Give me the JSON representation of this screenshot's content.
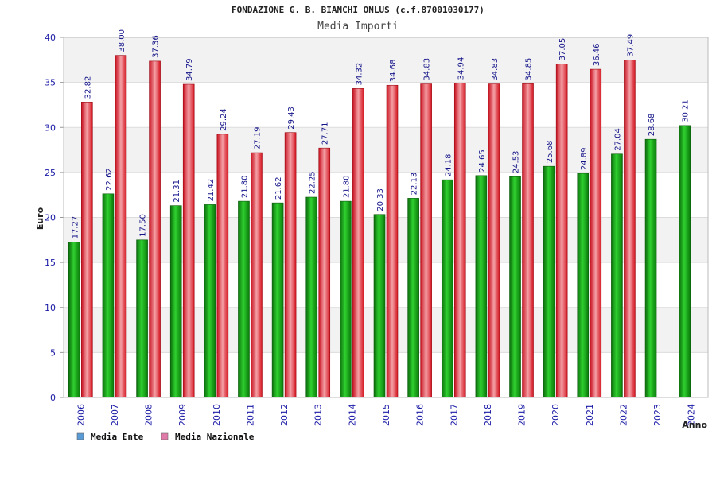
{
  "chart_data": {
    "type": "bar",
    "title": "FONDAZIONE G. B. BIANCHI ONLUS (c.f.87001030177)",
    "subtitle": "Media Importi",
    "ylabel": "Euro",
    "xlabel": "Anno",
    "ylim": [
      0,
      40
    ],
    "yticks": [
      "0",
      "5",
      "10",
      "15",
      "20",
      "25",
      "30",
      "35",
      "40"
    ],
    "grid": true,
    "legend_position": "bottom-left",
    "categories": [
      "2006",
      "2007",
      "2008",
      "2009",
      "2010",
      "2011",
      "2012",
      "2013",
      "2014",
      "2015",
      "2016",
      "2017",
      "2018",
      "2019",
      "2020",
      "2021",
      "2022",
      "2023",
      "2024"
    ],
    "series": [
      {
        "name": "Media Ente",
        "legend_color": "#5b9bd5",
        "bar_color": "#22aa22",
        "values": [
          17.27,
          22.62,
          17.5,
          21.31,
          21.42,
          21.8,
          21.62,
          22.25,
          21.8,
          20.33,
          22.13,
          24.18,
          24.65,
          24.53,
          25.68,
          24.89,
          27.04,
          28.68,
          30.21
        ],
        "labels": [
          "17.27",
          "22.62",
          "17.50",
          "21.31",
          "21.42",
          "21.80",
          "21.62",
          "22.25",
          "21.80",
          "20.33",
          "22.13",
          "24.18",
          "24.65",
          "24.53",
          "25.68",
          "24.89",
          "27.04",
          "28.68",
          "30.21"
        ]
      },
      {
        "name": "Media Nazionale",
        "legend_color": "#e07aa8",
        "bar_color": "#ee2a36",
        "values": [
          32.82,
          38.0,
          37.36,
          34.79,
          29.24,
          27.19,
          29.43,
          27.71,
          34.32,
          34.68,
          34.83,
          34.94,
          34.83,
          34.85,
          37.05,
          36.46,
          37.49,
          null,
          null
        ],
        "labels": [
          "32.82",
          "38.00",
          "37.36",
          "34.79",
          "29.24",
          "27.19",
          "29.43",
          "27.71",
          "34.32",
          "34.68",
          "34.83",
          "34.94",
          "34.83",
          "34.85",
          "37.05",
          "36.46",
          "37.49",
          null,
          null
        ]
      }
    ]
  }
}
